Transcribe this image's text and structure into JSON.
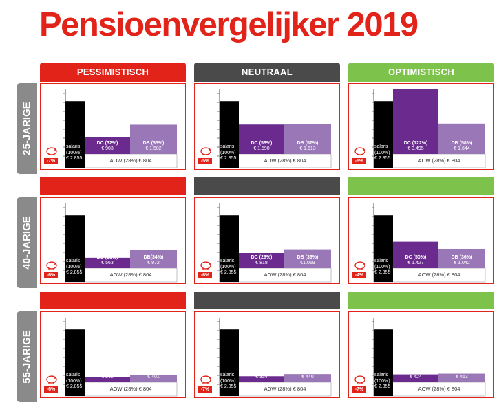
{
  "title": "Pensioenvergelijker 2019",
  "colors": {
    "red": "#e2231a",
    "dark": "#4a4a4a",
    "green": "#7dc24a",
    "salaris": "#000000",
    "dc": "#6a2a8e",
    "db": "#9a77b7",
    "tab": "#8a8a8a"
  },
  "scenarios": [
    {
      "label": "PESSIMISTISCH",
      "color": "#e2231a"
    },
    {
      "label": "NEUTRAAL",
      "color": "#4a4a4a"
    },
    {
      "label": "OPTIMISTISCH",
      "color": "#7dc24a"
    }
  ],
  "ages": [
    {
      "label": "25-JARIGE"
    },
    {
      "label": "40-JARIGE"
    },
    {
      "label": "55-JARIGE"
    }
  ],
  "chart_data": [
    {
      "type": "bar",
      "age": "25-JARIGE",
      "scenario": "PESSIMISTISCH",
      "drop": "-7%",
      "categories": [
        "salaris (100%)",
        "DC (32%)",
        "DB (55%)"
      ],
      "values": [
        2855,
        903,
        1582
      ],
      "labels": {
        "salaris_1": "salaris",
        "salaris_2": "(100%)",
        "salaris_3": "€ 2.855",
        "dc_1": "DC (32%)",
        "dc_2": "€ 903",
        "db_1": "DB (55%)",
        "db_2": "€ 1.582"
      },
      "aow": "AOW (28%) € 804"
    },
    {
      "type": "bar",
      "age": "25-JARIGE",
      "scenario": "NEUTRAAL",
      "drop": "-5%",
      "categories": [
        "salaris (100%)",
        "DC (56%)",
        "DB (57%)"
      ],
      "values": [
        2855,
        1590,
        1613
      ],
      "labels": {
        "salaris_1": "salaris",
        "salaris_2": "(100%)",
        "salaris_3": "€ 2.855",
        "dc_1": "DC (56%)",
        "dc_2": "€ 1.590",
        "db_1": "DB (57%)",
        "db_2": "€ 1.613"
      },
      "aow": "AOW (28%) € 804"
    },
    {
      "type": "bar",
      "age": "25-JARIGE",
      "scenario": "OPTIMISTISCH",
      "drop": "-5%",
      "categories": [
        "salaris (100%)",
        "DC (122%)",
        "DB (58%)"
      ],
      "values": [
        2855,
        3495,
        1644
      ],
      "labels": {
        "salaris_1": "salaris",
        "salaris_2": "(100%)",
        "salaris_3": "€ 2.855",
        "dc_1": "DC (122%)",
        "dc_2": "€ 3.495",
        "db_1": "DB (58%)",
        "db_2": "€ 1.644"
      },
      "aow": "AOW (28%) € 804"
    },
    {
      "type": "bar",
      "age": "40-JARIGE",
      "scenario": "PESSIMISTISCH",
      "drop": "-6%",
      "categories": [
        "salaris (100%)",
        "DC (20%)",
        "DB (34%)"
      ],
      "values": [
        2855,
        563,
        972
      ],
      "labels": {
        "salaris_1": "salaris",
        "salaris_2": "(100%)",
        "salaris_3": "€ 2.855",
        "dc_1": "DC (20%)",
        "dc_2": "€ 563",
        "db_1": "DB(34%)",
        "db_2": "€ 972"
      },
      "aow": "AOW (28%) € 804"
    },
    {
      "type": "bar",
      "age": "40-JARIGE",
      "scenario": "NEUTRAAL",
      "drop": "-6%",
      "categories": [
        "salaris (100%)",
        "DC (29%)",
        "DB (36%)"
      ],
      "values": [
        2855,
        818,
        1019
      ],
      "labels": {
        "salaris_1": "salaris",
        "salaris_2": "(100%)",
        "salaris_3": "€ 2.855",
        "dc_1": "DC (29%)",
        "dc_2": "€ 818",
        "db_1": "DB (36%)",
        "db_2": "€1.019"
      },
      "aow": "AOW (28%) € 804"
    },
    {
      "type": "bar",
      "age": "40-JARIGE",
      "scenario": "OPTIMISTISCH",
      "drop": "-4%",
      "categories": [
        "salaris (100%)",
        "DC (50%)",
        "DB (36%)"
      ],
      "values": [
        2855,
        1427,
        1042
      ],
      "labels": {
        "salaris_1": "salaris",
        "salaris_2": "(100%)",
        "salaris_3": "€ 2.855",
        "dc_1": "DC (50%)",
        "dc_2": "€ 1.427",
        "db_1": "DB (36%)",
        "db_2": "€ 1.042"
      },
      "aow": "AOW (28%) € 804"
    },
    {
      "type": "bar",
      "age": "55-JARIGE",
      "scenario": "PESSIMISTISCH",
      "drop": "-6%",
      "categories": [
        "salaris (100%)",
        "DC(9%)",
        "DB(14%)"
      ],
      "values": [
        2855,
        262,
        401
      ],
      "labels": {
        "salaris_1": "salaris",
        "salaris_2": "(100%)",
        "salaris_3": "€ 2.855",
        "dc_1": "DC(9%)",
        "dc_2": "€ 262",
        "db_1": "DB(14%)",
        "db_2": "€ 401"
      },
      "aow": "AOW (28%) € 804"
    },
    {
      "type": "bar",
      "age": "55-JARIGE",
      "scenario": "NEUTRAAL",
      "drop": "-7%",
      "categories": [
        "salaris (100%)",
        "DC (11%)",
        "DB (15%)"
      ],
      "values": [
        2855,
        324,
        440
      ],
      "labels": {
        "salaris_1": "salaris",
        "salaris_2": "(100%)",
        "salaris_3": "€ 2.855",
        "dc_1": "DC (11%)",
        "dc_2": "€ 324",
        "db_1": "DB (15%)",
        "db_2": "€ 440"
      },
      "aow": "AOW (28%) € 804"
    },
    {
      "type": "bar",
      "age": "55-JARIGE",
      "scenario": "OPTIMISTISCH",
      "drop": "-7%",
      "categories": [
        "salaris (100%)",
        "DC (15%)",
        "DB (16%)"
      ],
      "values": [
        2855,
        424,
        463
      ],
      "labels": {
        "salaris_1": "salaris",
        "salaris_2": "(100%)",
        "salaris_3": "€ 2.855",
        "dc_1": "DC (15%)",
        "dc_2": "€ 424",
        "db_1": "DB (16%)",
        "db_2": "€ 463"
      },
      "aow": "AOW (28%) € 804"
    }
  ]
}
